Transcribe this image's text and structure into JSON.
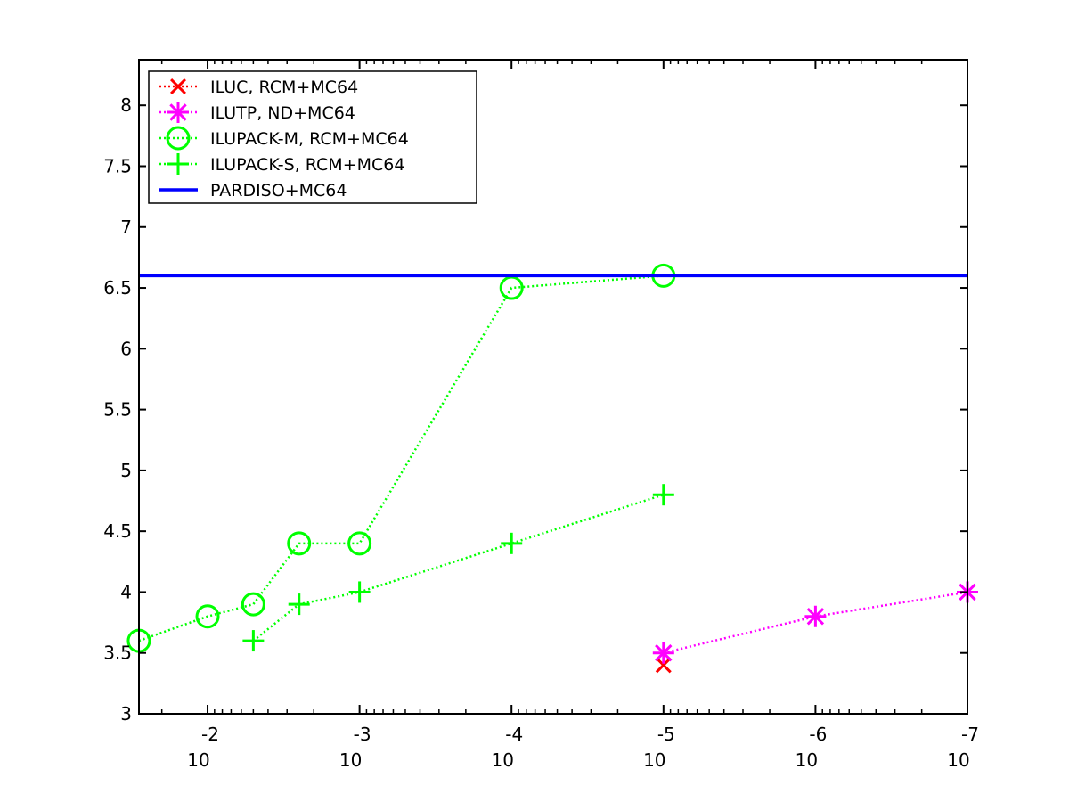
{
  "chart_data": {
    "type": "line",
    "title": "",
    "xlabel": "",
    "ylabel": "",
    "x_scale": "log",
    "x_reversed": true,
    "xlim": [
      0.02828,
      1e-07
    ],
    "ylim": [
      3,
      8.375
    ],
    "grid": false,
    "legend_position": "top-left",
    "x_ticks": [
      {
        "value": 0.01,
        "base": "10",
        "exp": "-2"
      },
      {
        "value": 0.001,
        "base": "10",
        "exp": "-3"
      },
      {
        "value": 0.0001,
        "base": "10",
        "exp": "-4"
      },
      {
        "value": 1e-05,
        "base": "10",
        "exp": "-5"
      },
      {
        "value": 1e-06,
        "base": "10",
        "exp": "-6"
      },
      {
        "value": 1e-07,
        "base": "10",
        "exp": "-7"
      }
    ],
    "y_ticks": [
      {
        "value": 3,
        "label": "3"
      },
      {
        "value": 3.5,
        "label": "3.5"
      },
      {
        "value": 4,
        "label": "4"
      },
      {
        "value": 4.5,
        "label": "4.5"
      },
      {
        "value": 5,
        "label": "5"
      },
      {
        "value": 5.5,
        "label": "5.5"
      },
      {
        "value": 6,
        "label": "6"
      },
      {
        "value": 6.5,
        "label": "6.5"
      },
      {
        "value": 7,
        "label": "7"
      },
      {
        "value": 7.5,
        "label": "7.5"
      },
      {
        "value": 8,
        "label": "8"
      }
    ],
    "series": [
      {
        "name": "ILUC, RCM+MC64",
        "color": "#ff0000",
        "marker": "x",
        "line_style": "dotted",
        "x": [
          1e-05
        ],
        "y": [
          3.4
        ]
      },
      {
        "name": "ILUTP,  ND+MC64",
        "color": "#ff00ff",
        "marker": "asterisk",
        "line_style": "dotted",
        "x": [
          1e-05,
          1e-06,
          1e-07
        ],
        "y": [
          3.5,
          3.8,
          4.0
        ]
      },
      {
        "name": "ILUPACK-M, RCM+MC64",
        "color": "#00ff00",
        "marker": "circle",
        "line_style": "dotted",
        "x": [
          0.0283,
          0.01,
          0.005,
          0.0025,
          0.001,
          0.0001,
          1e-05
        ],
        "y": [
          3.6,
          3.8,
          3.9,
          4.4,
          4.4,
          6.5,
          6.6
        ]
      },
      {
        "name": "ILUPACK-S, RCM+MC64",
        "color": "#00ff00",
        "marker": "plus",
        "line_style": "dotted",
        "x": [
          0.005,
          0.0025,
          0.001,
          0.0001,
          1e-05
        ],
        "y": [
          3.6,
          3.9,
          4.0,
          4.4,
          4.8
        ]
      },
      {
        "name": "PARDISO+MC64",
        "color": "#0000ff",
        "marker": "none",
        "line_style": "solid",
        "x": [
          0.0283,
          1e-07
        ],
        "y": [
          6.6,
          6.6
        ]
      }
    ]
  }
}
